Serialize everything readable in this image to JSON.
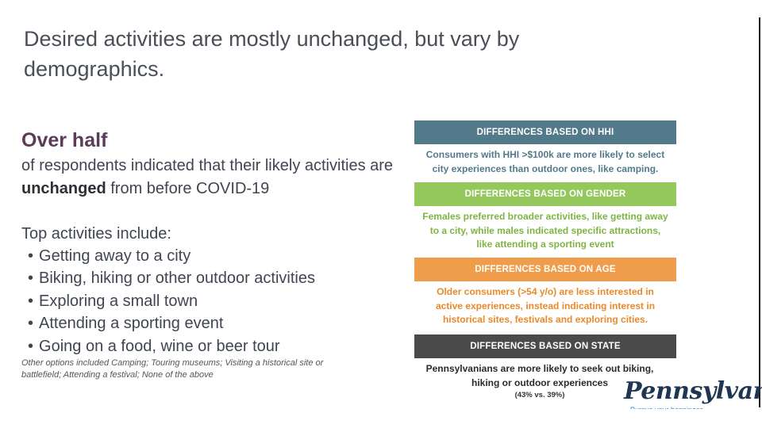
{
  "title": "Desired activities are mostly unchanged, but vary by demographics.",
  "left": {
    "headline": "Over half",
    "intro_before": "of respondents indicated that their likely activities are ",
    "intro_bold": "unchanged",
    "intro_after": " from before COVID-19",
    "top_heading": "Top activities include:",
    "activities": [
      "Getting away to a city",
      "Biking, hiking or other outdoor activities",
      "Exploring a small town",
      "Attending a sporting event",
      "Going on a food, wine or beer tour"
    ],
    "other_options": "Other options included Camping; Touring museums; Visiting a historical site or battlefield; Attending a festival; None of the above"
  },
  "panels": [
    {
      "header": "DIFFERENCES BASED ON HHI",
      "text": "Consumers with HHI >$100k are more likely to select city experiences than outdoor ones, like camping.",
      "color": "#527a8a",
      "text_color": "#527a8a"
    },
    {
      "header": "DIFFERENCES BASED ON GENDER",
      "text": "Females preferred broader activities, like getting away to a city, while males indicated specific attractions, like attending a sporting event",
      "color": "#94c85c",
      "text_color": "#7fb443"
    },
    {
      "header": "DIFFERENCES BASED ON AGE",
      "text": "Older consumers (>54 y/o) are less interested in active experiences, instead indicating interest in historical sites, festivals and exploring cities.",
      "color": "#ef9d4a",
      "text_color": "#e8892c"
    },
    {
      "header": "DIFFERENCES BASED ON STATE",
      "text": "Pennsylvanians are more likely to seek out biking, hiking or outdoor experiences",
      "subtext": "(43% vs. 39%)",
      "color": "#4a4a4a",
      "text_color": "#2a2a2a"
    }
  ],
  "logo": {
    "name": "Pennsylvania",
    "tagline": "Pursue your happiness"
  }
}
